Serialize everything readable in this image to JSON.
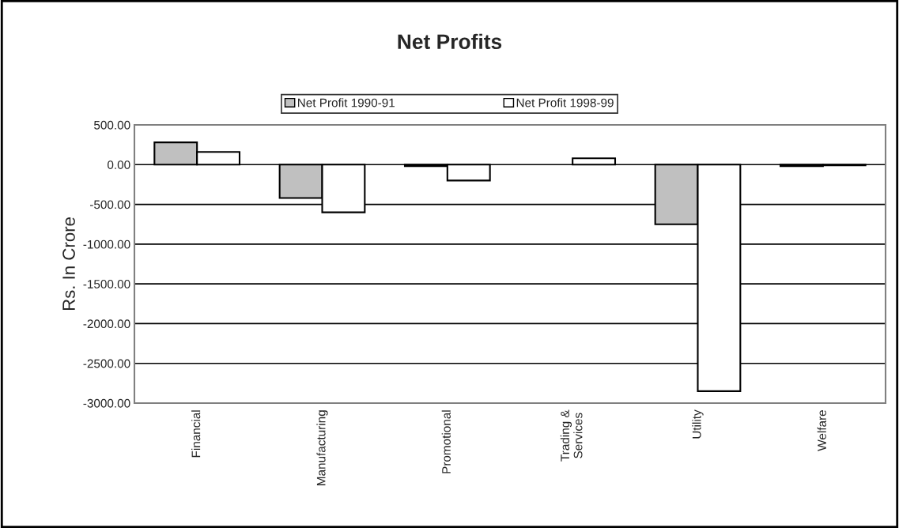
{
  "chart_data": {
    "type": "bar",
    "title": "Net Profits",
    "ylabel": "Rs. In Crore",
    "categories": [
      "Financial",
      "Manufacturing",
      "Promotional",
      "Trading &\nServices",
      "Utility",
      "Welfare"
    ],
    "series": [
      {
        "name": "Net Profit 1990-91",
        "color": "#c0c0c0",
        "values": [
          280,
          -420,
          -20,
          null,
          -750,
          -20
        ]
      },
      {
        "name": "Net Profit 1998-99",
        "color": "#ffffff",
        "values": [
          160,
          -600,
          -200,
          80,
          -2850,
          -10
        ]
      }
    ],
    "ylim": [
      -3000,
      500
    ],
    "yticks": [
      {
        "value": 500,
        "label": "500.00"
      },
      {
        "value": 0,
        "label": "0.00"
      },
      {
        "value": -500,
        "label": "-500.00"
      },
      {
        "value": -1000,
        "label": "-1000.00"
      },
      {
        "value": -1500,
        "label": "-1500.00"
      },
      {
        "value": -2000,
        "label": "-2000.00"
      },
      {
        "value": -2500,
        "label": "-2500.00"
      },
      {
        "value": -3000,
        "label": "-3000.00"
      }
    ],
    "grid": "y",
    "legend": "top"
  }
}
